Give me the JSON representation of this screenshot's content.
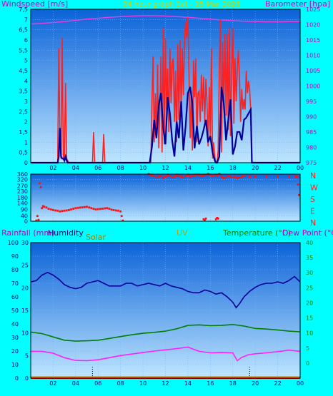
{
  "header": {
    "title": "24 hour graph Sat - 15 Mar 2025",
    "left_label": "Windspeed [m/s]",
    "right_label": "Barometer [hpa]"
  },
  "direction_panel": {
    "letters": [
      "N",
      "W",
      "S",
      "E",
      "N"
    ]
  },
  "bottom_header": {
    "rainfall": "Rainfall (mm)",
    "humidity": "Humidity",
    "solar": "Solar",
    "uv": "UV",
    "temperature": "Temperature (°C)",
    "dewpoint": "Dew Point (°C)"
  },
  "x_ticks": [
    "02",
    "04",
    "06",
    "08",
    "10",
    "12",
    "14",
    "16",
    "18",
    "20",
    "22",
    "00"
  ],
  "colors": {
    "background": "#00ffff",
    "plot_top": "#0b62d8",
    "plot_bottom": "#bfe6ff",
    "wind_gust": "#ff2020",
    "wind_avg": "#000099",
    "barometer": "#e040e0",
    "direction": "#ff1010",
    "humidity": "#000099",
    "temperature": "#008000",
    "dewpoint": "#ff20ff",
    "solar": "#b8a000",
    "uv": "#ff9900",
    "rain": "#ff0000"
  },
  "chart_data": [
    {
      "type": "line",
      "title": "24 hour graph Sat - 15 Mar 2025",
      "ylabel": "Windspeed [m/s]",
      "y2label": "Barometer [hpa]",
      "xlim": [
        0,
        24
      ],
      "ylim": [
        0,
        7.5
      ],
      "y2lim": [
        975,
        1025
      ],
      "y_ticks": [
        0,
        0.5,
        1,
        1.5,
        2,
        2.5,
        3,
        3.5,
        4,
        4.5,
        5,
        5.5,
        6,
        6.5,
        7,
        7.5
      ],
      "y_tick_labels": [
        "0",
        "0,5",
        "1",
        "1,5",
        "2",
        "2,5",
        "3",
        "3,5",
        "4",
        "4,5",
        "5",
        "5,5",
        "6",
        "6,5",
        "7",
        "7,5"
      ],
      "y2_ticks": [
        975,
        980,
        985,
        990,
        995,
        1000,
        1005,
        1010,
        1015,
        1020,
        1025
      ],
      "series": [
        {
          "key": "gust",
          "x": [
            0,
            2.4,
            2.5,
            2.6,
            2.7,
            2.8,
            2.9,
            3.0,
            3.1,
            3.2,
            3.3,
            3.4,
            5.5,
            5.6,
            5.7,
            6.4,
            6.5,
            6.6,
            10.7,
            10.8,
            10.9,
            11.0,
            11.1,
            11.2,
            11.3,
            11.4,
            11.5,
            11.6,
            11.7,
            11.8,
            11.9,
            12.0,
            12.1,
            12.2,
            12.3,
            12.4,
            12.5,
            12.6,
            12.7,
            12.8,
            12.9,
            13.0,
            13.1,
            13.2,
            13.3,
            13.4,
            13.5,
            13.6,
            13.7,
            13.8,
            13.9,
            14.0,
            14.1,
            14.2,
            14.3,
            14.4,
            14.5,
            14.6,
            14.7,
            14.8,
            14.9,
            15.0,
            15.1,
            15.2,
            15.3,
            15.4,
            15.5,
            15.6,
            15.7,
            15.8,
            15.9,
            16.0,
            16.1,
            16.2,
            16.3,
            16.4,
            16.5,
            16.6,
            16.7,
            16.8,
            16.9,
            17.0,
            17.1,
            17.2,
            17.3,
            17.4,
            17.5,
            17.6,
            17.7,
            17.8,
            17.9,
            18.0,
            18.1,
            18.2,
            18.3,
            18.4,
            18.5,
            18.6,
            18.7,
            18.8,
            18.9,
            19.0,
            19.1,
            19.2,
            19.3,
            19.4,
            19.5,
            19.6,
            19.7,
            24
          ],
          "y": [
            0,
            0,
            5.6,
            1.5,
            0.2,
            6.1,
            0.2,
            0.3,
            3.9,
            0.2,
            0.1,
            0,
            0,
            1.5,
            0,
            0,
            1.4,
            0,
            0,
            3.1,
            5.2,
            1.0,
            3.4,
            1.2,
            4.8,
            0.7,
            2.6,
            5.2,
            0.5,
            6.6,
            0.9,
            6.1,
            2.6,
            4.6,
            1.5,
            5.6,
            2.9,
            4.9,
            5.1,
            2.0,
            4.5,
            1.0,
            5.8,
            2.1,
            6.0,
            2.5,
            5.6,
            3.3,
            5.9,
            6.9,
            6.1,
            7.1,
            4.3,
            1.2,
            3.5,
            0.6,
            5.0,
            3.2,
            5.1,
            1.0,
            3.4,
            3.5,
            2.0,
            4.3,
            2.5,
            4.2,
            2.0,
            4.1,
            3.1,
            0.8,
            3.7,
            1.3,
            5.6,
            0.2,
            1.0,
            0.3,
            0,
            0,
            0.6,
            4.6,
            7.0,
            0.5,
            5.9,
            2.6,
            6.3,
            2.3,
            6.3,
            1.6,
            6.6,
            1.3,
            4.6,
            6.6,
            1.9,
            5.1,
            3.0,
            4.6,
            5.5,
            4.1,
            2.0,
            3.6,
            2.6,
            3.1,
            2.6,
            4.5,
            3.4,
            4.0,
            3.6,
            2.5,
            0,
            0
          ]
        },
        {
          "key": "average",
          "x": [
            0,
            2.4,
            2.5,
            2.6,
            2.7,
            2.8,
            2.9,
            3.0,
            3.1,
            3.2,
            3.3,
            10.6,
            10.8,
            11.0,
            11.2,
            11.4,
            11.6,
            11.8,
            12.0,
            12.2,
            12.4,
            12.6,
            12.8,
            13.0,
            13.2,
            13.4,
            13.6,
            13.8,
            14.0,
            14.2,
            14.4,
            14.6,
            14.8,
            15.0,
            15.2,
            15.4,
            15.6,
            15.8,
            16.0,
            16.2,
            16.4,
            16.5,
            16.6,
            16.8,
            17.0,
            17.2,
            17.4,
            17.6,
            17.8,
            18.0,
            18.2,
            18.4,
            18.6,
            18.8,
            19.0,
            19.2,
            19.4,
            19.6,
            19.7,
            24
          ],
          "y": [
            0,
            0,
            0.3,
            1.7,
            0.3,
            0.2,
            0.2,
            0.1,
            0.3,
            0.1,
            0,
            0,
            0.8,
            2.1,
            1.2,
            2.8,
            3.4,
            1.7,
            0.9,
            3.2,
            2.4,
            1.1,
            0.3,
            2.0,
            1.2,
            3.0,
            0.6,
            1.8,
            3.4,
            3.7,
            2.9,
            0.7,
            1.8,
            0.9,
            1.2,
            1.6,
            2.1,
            1.0,
            1.3,
            0.5,
            0.1,
            0,
            0,
            0.3,
            3.7,
            2.9,
            1.1,
            2.1,
            3.1,
            0.4,
            0.8,
            1.5,
            1.5,
            1.1,
            2.1,
            2.2,
            2.4,
            2.6,
            0,
            0
          ]
        },
        {
          "key": "barometer",
          "axis": "y2",
          "x": [
            0,
            1,
            2,
            3,
            4,
            5,
            6,
            7,
            8,
            9,
            10,
            11,
            12,
            13,
            14,
            15,
            16,
            17,
            18,
            19,
            20,
            21,
            22,
            23,
            24
          ],
          "y": [
            1020.2,
            1020.4,
            1020.7,
            1021.0,
            1021.4,
            1021.8,
            1022.1,
            1022.4,
            1022.6,
            1022.8,
            1022.9,
            1022.9,
            1022.8,
            1022.6,
            1022.4,
            1022.1,
            1021.8,
            1021.5,
            1021.3,
            1021.1,
            1021.0,
            1020.9,
            1020.9,
            1021.0,
            1021.0
          ]
        }
      ]
    },
    {
      "type": "scatter",
      "title": "",
      "xlim": [
        0,
        24
      ],
      "ylim": [
        0,
        360
      ],
      "y_ticks": [
        0,
        40,
        90,
        140,
        180,
        230,
        270,
        320,
        360
      ],
      "y_right_labels": [
        "N",
        "W",
        "S",
        "E",
        "N"
      ],
      "series": [
        {
          "key": "direction",
          "x": [
            0.5,
            0.6,
            0.7,
            0.8,
            0.9,
            1.0,
            1.1,
            1.2,
            1.4,
            1.6,
            1.8,
            2.0,
            2.2,
            2.4,
            2.6,
            2.8,
            3.0,
            3.2,
            3.4,
            3.6,
            3.8,
            4.0,
            4.2,
            4.4,
            4.6,
            4.8,
            5.0,
            5.2,
            5.4,
            5.6,
            5.8,
            6.0,
            6.2,
            6.4,
            6.6,
            6.8,
            7.0,
            7.2,
            7.4,
            7.6,
            7.8,
            8.0,
            8.1,
            8.2,
            10.5,
            10.6,
            10.8,
            11.0,
            11.2,
            11.4,
            11.6,
            11.8,
            12.0,
            12.2,
            12.4,
            12.6,
            12.8,
            13.0,
            13.2,
            13.4,
            13.6,
            13.8,
            14.0,
            14.2,
            14.4,
            14.6,
            14.8,
            15.0,
            15.2,
            15.4,
            15.6,
            15.8,
            16.0,
            16.2,
            16.4,
            16.6,
            16.8,
            17.0,
            17.2,
            17.4,
            17.6,
            17.8,
            18.0,
            18.2,
            18.4,
            18.6,
            18.8,
            19.0,
            19.5,
            20.0,
            21.0,
            22.0,
            23.0,
            23.6,
            23.7,
            23.8,
            23.9,
            15.4,
            15.5,
            15.6,
            16.5,
            16.6,
            16.7
          ],
          "y": [
            5,
            40,
            10,
            290,
            260,
            100,
            115,
            110,
            105,
            95,
            90,
            85,
            82,
            80,
            75,
            78,
            80,
            82,
            85,
            90,
            95,
            100,
            102,
            104,
            106,
            108,
            110,
            105,
            100,
            95,
            90,
            92,
            94,
            96,
            98,
            100,
            95,
            88,
            85,
            82,
            80,
            75,
            40,
            5,
            360,
            355,
            350,
            345,
            335,
            340,
            345,
            330,
            340,
            350,
            345,
            335,
            340,
            350,
            345,
            340,
            335,
            345,
            350,
            340,
            345,
            350,
            355,
            350,
            345,
            350,
            355,
            360,
            350,
            345,
            355,
            350,
            360,
            340,
            330,
            335,
            345,
            340,
            335,
            340,
            330,
            335,
            340,
            345,
            340,
            340,
            340,
            340,
            340,
            340,
            340,
            280,
            200,
            15,
            10,
            20,
            15,
            25,
            20
          ]
        }
      ]
    },
    {
      "type": "line",
      "title": "",
      "ylabel": "Rainfall (mm)",
      "y2label": "Temperature (°C)",
      "xlim": [
        0,
        24
      ],
      "ylim": [
        0,
        100
      ],
      "y_ticks_humidity": [
        0,
        10,
        20,
        30,
        40,
        50,
        60,
        70,
        80,
        90,
        100
      ],
      "y_ticks_rain": [
        0,
        5,
        10,
        15,
        20,
        25,
        30
      ],
      "y2lim": [
        -5,
        40
      ],
      "y2_ticks": [
        0,
        5,
        10,
        15,
        20,
        25,
        30,
        35,
        40
      ],
      "series": [
        {
          "key": "humidity",
          "x": [
            0,
            0.5,
            1.0,
            1.5,
            2.0,
            2.5,
            3.0,
            3.5,
            4.0,
            4.5,
            5.0,
            5.5,
            6.0,
            6.5,
            7.0,
            7.5,
            8.0,
            8.5,
            9.0,
            9.5,
            10.0,
            10.5,
            11.0,
            11.5,
            12.0,
            12.5,
            13.0,
            13.5,
            14.0,
            14.5,
            15.0,
            15.5,
            16.0,
            16.5,
            17.0,
            17.5,
            18.0,
            18.3,
            18.6,
            19.0,
            19.5,
            20.0,
            20.5,
            21.0,
            21.5,
            22.0,
            22.5,
            23.0,
            23.5,
            24.0
          ],
          "y": [
            71,
            72,
            76,
            78,
            76,
            73,
            69,
            67,
            66,
            67,
            70,
            71,
            72,
            70,
            68,
            68,
            68,
            70,
            70,
            68,
            69,
            70,
            69,
            68,
            70,
            68,
            67,
            66,
            64,
            63,
            63,
            65,
            64,
            62,
            63,
            60,
            56,
            52,
            55,
            60,
            64,
            67,
            69,
            70,
            70,
            71,
            70,
            72,
            75,
            71
          ]
        },
        {
          "key": "temperature",
          "x": [
            0,
            1,
            2,
            3,
            4,
            5,
            6,
            7,
            8,
            9,
            10,
            11,
            12,
            13,
            14,
            15,
            16,
            17,
            18,
            19,
            20,
            21,
            22,
            23,
            24
          ],
          "y": [
            10.3,
            9.8,
            8.7,
            7.6,
            7.3,
            7.4,
            7.6,
            8.2,
            8.8,
            9.4,
            9.9,
            10.2,
            10.6,
            11.4,
            12.5,
            12.7,
            12.4,
            12.5,
            12.8,
            12.3,
            11.5,
            11.3,
            11.0,
            10.6,
            10.4
          ]
        },
        {
          "key": "dewpoint",
          "x": [
            0,
            1,
            2,
            3,
            4,
            5,
            6,
            7,
            8,
            9,
            10,
            11,
            12,
            13,
            14,
            15,
            16,
            17,
            18,
            18.4,
            18.8,
            19.4,
            20,
            21,
            22,
            23,
            24
          ],
          "y": [
            3.9,
            3.9,
            3.3,
            1.8,
            0.9,
            0.8,
            1.1,
            1.8,
            2.5,
            3.0,
            3.5,
            4.0,
            4.4,
            4.8,
            5.3,
            3.9,
            3.4,
            3.5,
            3.4,
            0.8,
            1.9,
            2.8,
            3.1,
            3.4,
            3.8,
            4.3,
            3.9
          ]
        },
        {
          "key": "solar",
          "x": [
            0,
            24
          ],
          "y": [
            0,
            0
          ]
        },
        {
          "key": "uv",
          "x": [
            0,
            24
          ],
          "y": [
            0,
            0
          ]
        },
        {
          "key": "rain",
          "x": [
            0,
            24
          ],
          "y": [
            0,
            0
          ]
        }
      ]
    }
  ]
}
